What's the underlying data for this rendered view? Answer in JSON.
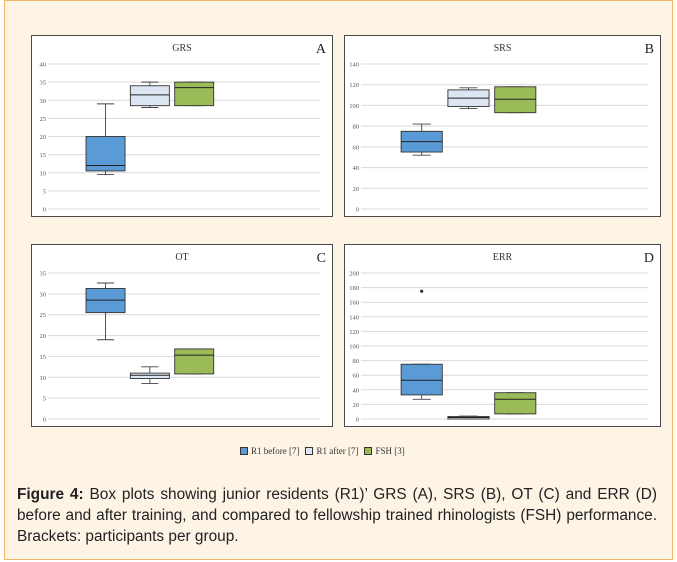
{
  "figure": {
    "caption_label": "Figure 4:",
    "caption_text": " Box plots showing junior residents (R1)’ GRS (A), SRS (B), OT (C) and ERR (D) before and after training, and compared to fellowship trained rhinologists (FSH) performance. Brackets: participants per group."
  },
  "legend": [
    {
      "label": "R1 before [7]",
      "color": "#5b9bd5"
    },
    {
      "label": "R1 after [7]",
      "color": "#dce6f2"
    },
    {
      "label": "FSH [3]",
      "color": "#9bbb59"
    }
  ],
  "chart_data": [
    {
      "type": "box",
      "title": "GRS",
      "panel_letter": "A",
      "ylim": [
        0,
        40
      ],
      "yticks": [
        0,
        5,
        10,
        15,
        20,
        25,
        30,
        35,
        40
      ],
      "grid": true,
      "series": [
        {
          "name": "R1 before [7]",
          "min": 9.5,
          "q1": 10.5,
          "median": 12,
          "q3": 20,
          "max": 29,
          "outliers": []
        },
        {
          "name": "R1 after [7]",
          "min": 28,
          "q1": 28.5,
          "median": 31.5,
          "q3": 34,
          "max": 35,
          "outliers": []
        },
        {
          "name": "FSH [3]",
          "min": 28.5,
          "q1": 28.5,
          "median": 33.5,
          "q3": 35,
          "max": 35,
          "outliers": []
        }
      ]
    },
    {
      "type": "box",
      "title": "SRS",
      "panel_letter": "B",
      "ylim": [
        0,
        140
      ],
      "yticks": [
        0,
        20,
        40,
        60,
        80,
        100,
        120,
        140
      ],
      "grid": true,
      "series": [
        {
          "name": "R1 before [7]",
          "min": 52,
          "q1": 55,
          "median": 65,
          "q3": 75,
          "max": 82,
          "outliers": []
        },
        {
          "name": "R1 after [7]",
          "min": 97,
          "q1": 99,
          "median": 107,
          "q3": 115,
          "max": 117,
          "outliers": []
        },
        {
          "name": "FSH [3]",
          "min": 93,
          "q1": 93,
          "median": 106,
          "q3": 118,
          "max": 118,
          "outliers": []
        }
      ]
    },
    {
      "type": "box",
      "title": "OT",
      "panel_letter": "C",
      "ylim": [
        0,
        35
      ],
      "yticks": [
        0,
        5,
        10,
        15,
        20,
        25,
        30,
        35
      ],
      "grid": true,
      "series": [
        {
          "name": "R1 before [7]",
          "min": 19,
          "q1": 25.5,
          "median": 28.5,
          "q3": 31.3,
          "max": 32.6,
          "outliers": []
        },
        {
          "name": "R1 after [7]",
          "min": 8.5,
          "q1": 9.7,
          "median": 10.5,
          "q3": 11,
          "max": 12.5,
          "outliers": []
        },
        {
          "name": "FSH [3]",
          "min": 10.8,
          "q1": 10.8,
          "median": 15.3,
          "q3": 16.8,
          "max": 16.8,
          "outliers": []
        }
      ]
    },
    {
      "type": "box",
      "title": "ERR",
      "panel_letter": "D",
      "ylim": [
        0,
        200
      ],
      "yticks": [
        0,
        20,
        40,
        60,
        80,
        100,
        120,
        140,
        160,
        180,
        200
      ],
      "grid": true,
      "series": [
        {
          "name": "R1 before [7]",
          "min": 27,
          "q1": 33,
          "median": 53,
          "q3": 75,
          "max": 75,
          "outliers": [
            175
          ]
        },
        {
          "name": "R1 after [7]",
          "min": 0,
          "q1": 0,
          "median": 2,
          "q3": 3.5,
          "max": 4,
          "outliers": []
        },
        {
          "name": "FSH [3]",
          "min": 7,
          "q1": 7,
          "median": 27,
          "q3": 36,
          "max": 36,
          "outliers": []
        }
      ]
    }
  ]
}
